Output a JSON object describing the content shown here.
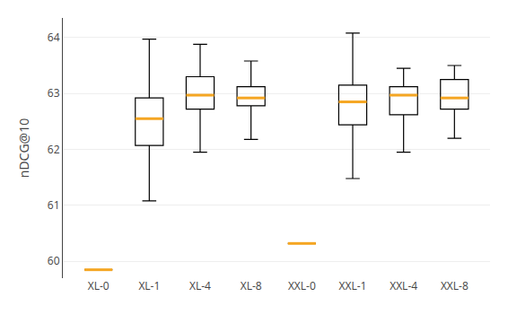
{
  "chart_data": {
    "type": "box",
    "categories": [
      "XL-0",
      "XL-1",
      "XL-4",
      "XL-8",
      "XXL-0",
      "XXL-1",
      "XXL-4",
      "XXL-8"
    ],
    "boxes": [
      {
        "lower_whisker": 59.85,
        "q1": 59.85,
        "median": 59.85,
        "q3": 59.85,
        "upper_whisker": 59.85
      },
      {
        "lower_whisker": 61.08,
        "q1": 62.07,
        "median": 62.55,
        "q3": 62.92,
        "upper_whisker": 63.97
      },
      {
        "lower_whisker": 61.95,
        "q1": 62.72,
        "median": 62.97,
        "q3": 63.3,
        "upper_whisker": 63.88
      },
      {
        "lower_whisker": 62.18,
        "q1": 62.78,
        "median": 62.92,
        "q3": 63.12,
        "upper_whisker": 63.58
      },
      {
        "lower_whisker": 60.32,
        "q1": 60.32,
        "median": 60.32,
        "q3": 60.32,
        "upper_whisker": 60.32
      },
      {
        "lower_whisker": 61.48,
        "q1": 62.44,
        "median": 62.85,
        "q3": 63.15,
        "upper_whisker": 64.08
      },
      {
        "lower_whisker": 61.95,
        "q1": 62.62,
        "median": 62.97,
        "q3": 63.12,
        "upper_whisker": 63.45
      },
      {
        "lower_whisker": 62.2,
        "q1": 62.72,
        "median": 62.92,
        "q3": 63.25,
        "upper_whisker": 63.5
      }
    ],
    "ylabel": "nDCG@10",
    "ylim": [
      59.7,
      64.35
    ],
    "yticks": [
      60,
      61,
      62,
      63,
      64
    ],
    "color": "black",
    "median_color": "#f5a623",
    "grid": true
  }
}
